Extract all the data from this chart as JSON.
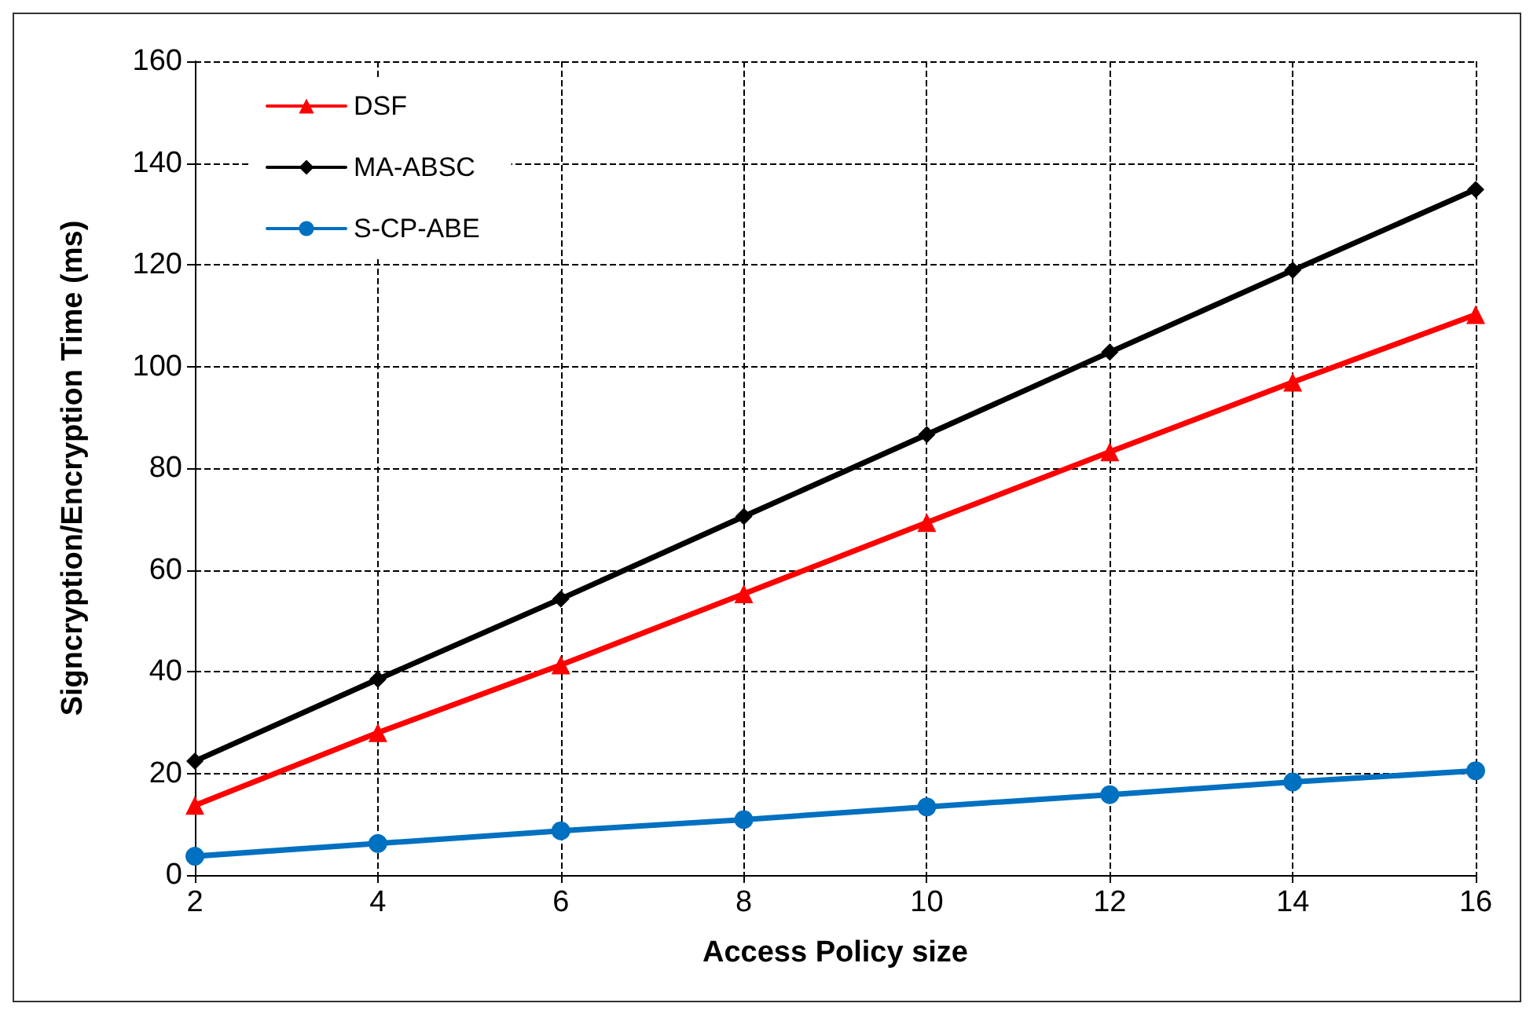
{
  "chart_data": {
    "type": "line",
    "xlabel": "Access Policy size",
    "ylabel": "Signcryption/Encryption Time (ms)",
    "x": [
      2,
      4,
      6,
      8,
      10,
      12,
      14,
      16
    ],
    "series": [
      {
        "name": "DSF",
        "color": "#ff0000",
        "marker": "triangle",
        "values": [
          13.7,
          28,
          41.3,
          55.3,
          69.3,
          83.2,
          96.9,
          110.2
        ]
      },
      {
        "name": "MA-ABSC",
        "color": "#000000",
        "marker": "diamond",
        "values": [
          22.4,
          38.5,
          54.3,
          70.5,
          86.6,
          102.8,
          118.9,
          134.8
        ]
      },
      {
        "name": "S-CP-ABE",
        "color": "#0070c0",
        "marker": "circle",
        "values": [
          3.7,
          6.2,
          8.7,
          10.9,
          13.4,
          15.8,
          18.3,
          20.5
        ]
      }
    ],
    "xlim": [
      2,
      16
    ],
    "xticks": [
      2,
      4,
      6,
      8,
      10,
      12,
      14,
      16
    ],
    "ylim": [
      0,
      160
    ],
    "yticks": [
      0,
      20,
      40,
      60,
      80,
      100,
      120,
      140,
      160
    ],
    "grid": true,
    "legend": "top left",
    "line_style": "solid"
  }
}
